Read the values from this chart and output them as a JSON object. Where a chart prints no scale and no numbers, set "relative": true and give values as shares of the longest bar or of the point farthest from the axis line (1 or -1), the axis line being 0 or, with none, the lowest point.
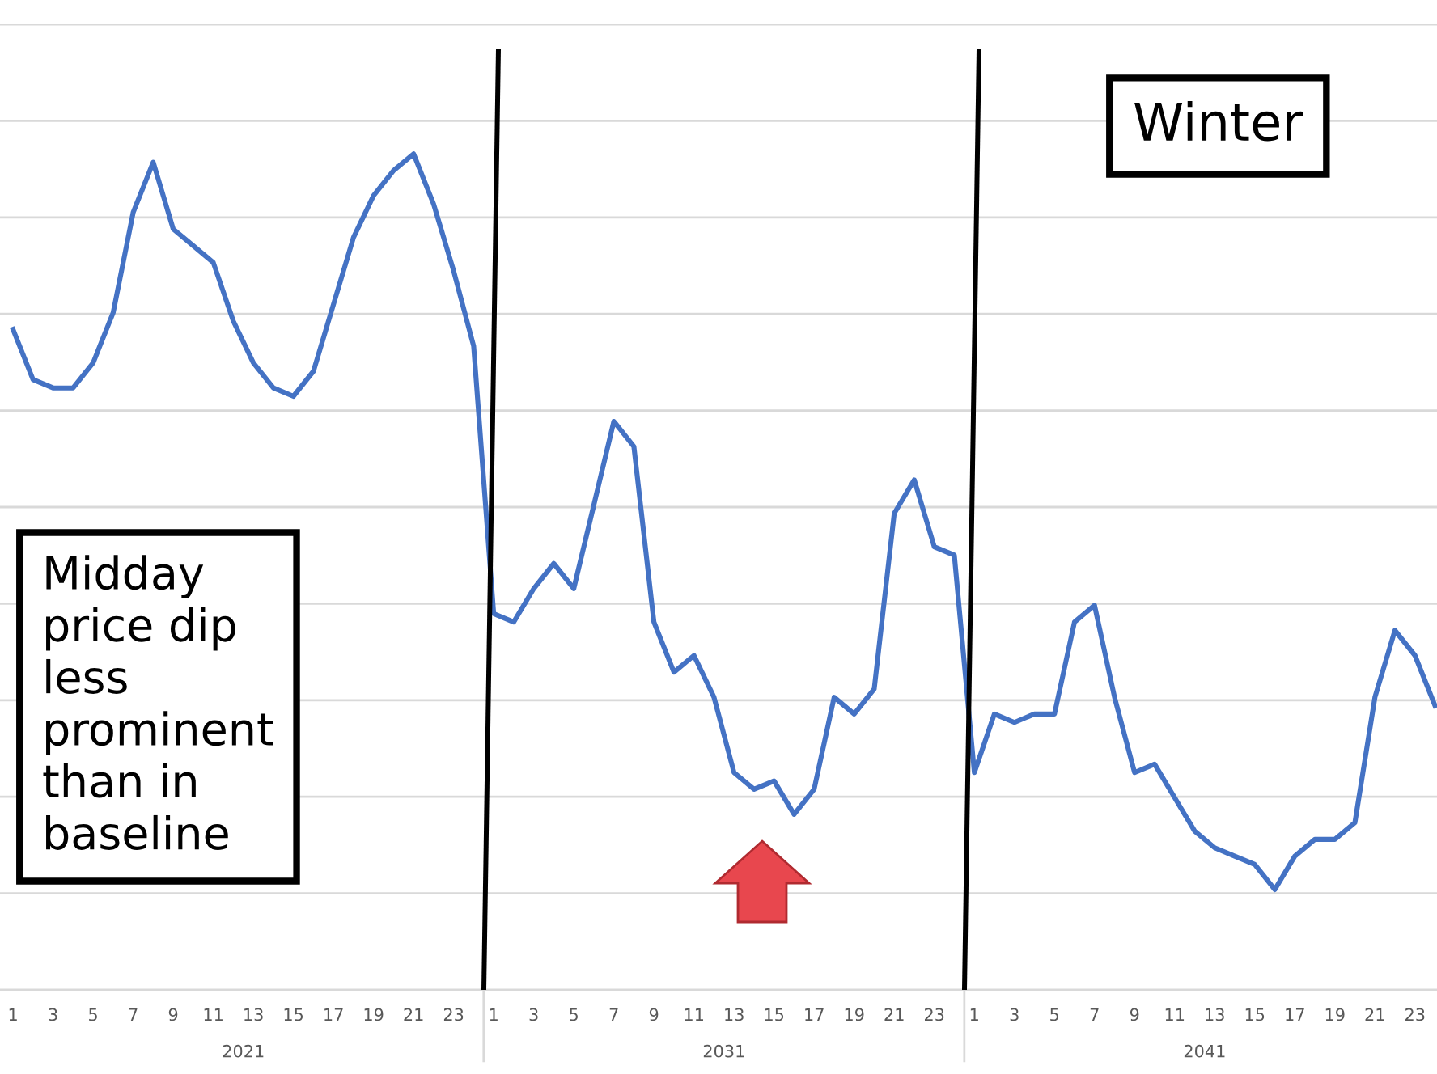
{
  "chart_data": {
    "type": "line",
    "relative": true,
    "grid": "y",
    "marker": "none",
    "line_style": "solid",
    "categories": [
      "1",
      null,
      "3",
      null,
      "5",
      null,
      "7",
      null,
      "9",
      null,
      "11",
      null,
      "13",
      null,
      "15",
      null,
      "17",
      null,
      "19",
      null,
      "21",
      null,
      "23",
      null,
      "1",
      null,
      "3",
      null,
      "5",
      null,
      "7",
      null,
      "9",
      null,
      "11",
      null,
      "13",
      null,
      "15",
      null,
      "17",
      null,
      "19",
      null,
      "21",
      null,
      "23",
      null,
      "1",
      null,
      "3",
      null,
      "5",
      null,
      "7",
      null,
      "9",
      null,
      "11",
      null,
      "13",
      null,
      "15",
      null,
      "17",
      null,
      "19",
      null,
      "21",
      null,
      "23",
      null
    ],
    "series": [
      {
        "color": "#4472c4",
        "values": [
          0.79,
          0.73,
          0.72,
          0.72,
          0.75,
          0.81,
          0.93,
          0.99,
          0.91,
          0.89,
          0.87,
          0.8,
          0.75,
          0.72,
          0.71,
          0.74,
          0.82,
          0.9,
          0.95,
          0.98,
          1.0,
          0.94,
          0.86,
          0.77,
          0.45,
          0.44,
          0.48,
          0.51,
          0.48,
          0.58,
          0.68,
          0.65,
          0.44,
          0.38,
          0.4,
          0.35,
          0.26,
          0.24,
          0.25,
          0.21,
          0.24,
          0.35,
          0.33,
          0.36,
          0.57,
          0.61,
          0.53,
          0.52,
          0.26,
          0.33,
          0.32,
          0.33,
          0.33,
          0.44,
          0.46,
          0.35,
          0.26,
          0.27,
          0.23,
          0.19,
          0.17,
          0.16,
          0.15,
          0.12,
          0.16,
          0.18,
          0.18,
          0.2,
          0.35,
          0.43,
          0.4,
          0.34
        ]
      }
    ],
    "annotations": [
      "Winter",
      "Midday\nprice dip\nless\nprominent\nthan in\nbaseline",
      "2021",
      "2031",
      "2041"
    ]
  }
}
